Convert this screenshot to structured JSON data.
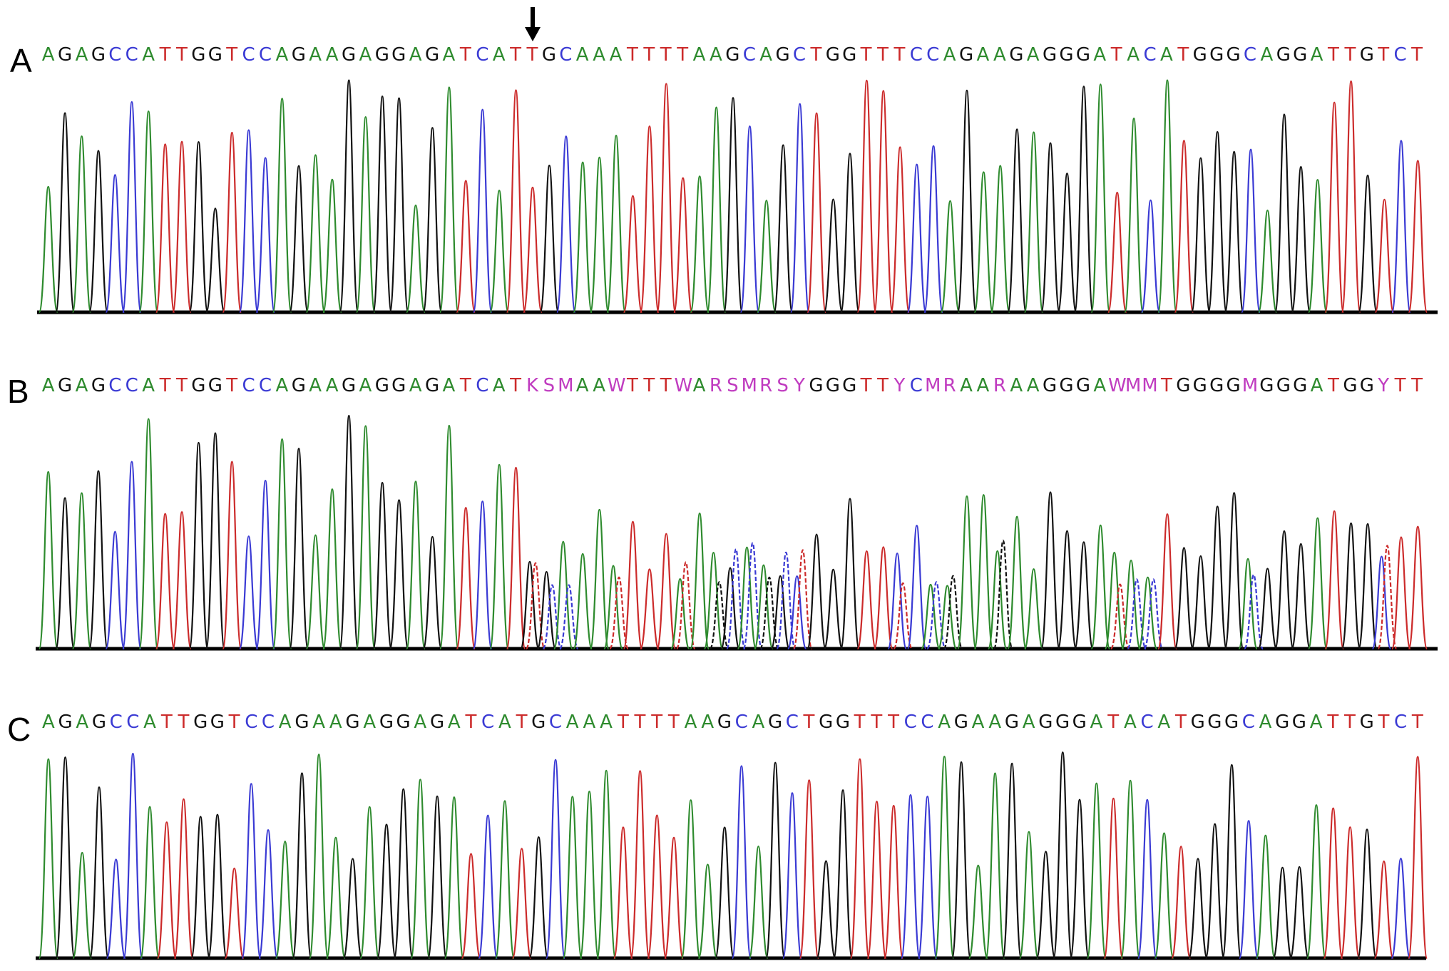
{
  "colors": {
    "A": "#2e8b2e",
    "C": "#3a3ad4",
    "G": "#111111",
    "T": "#cc2b2b",
    "ambiguous": "#c03cc0",
    "axis": "#000000"
  },
  "panels": [
    {
      "label": "A",
      "sequence": "AGAGCCATTGGTCCAGAAGAGGAGATCATTGCAAATTTTAAGCAGCTGGTTTCCAGAAGAGGGATACATGGGCAGGATTGTCT",
      "marker": "arrow-down-icon",
      "mixed_from": -1
    },
    {
      "label": "B",
      "sequence": "AGAGCCATTGGTCCAGAAGAGGAGATCATKSMAAWTTTWARSMRSYGGGTTYCMRAARAAGGGAWMMTGGGGMGGGATGGYTT",
      "marker": "",
      "mixed_from": 29
    },
    {
      "label": "C",
      "sequence": "AGAGCCATTGGTCCAGAAGAGGAGATCATGCAAATTTTAAGCAGCTGGTTTCCAGAAGAGGGATACATGGGCAGGATTGTCT",
      "marker": "",
      "mixed_from": -1
    }
  ]
}
